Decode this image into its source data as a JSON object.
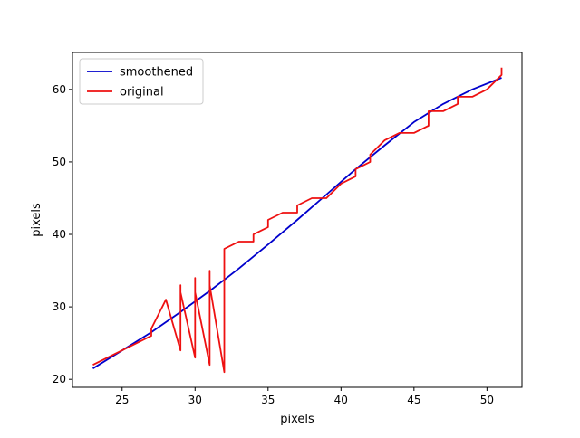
{
  "chart_data": {
    "type": "line",
    "xlabel": "pixels",
    "ylabel": "pixels",
    "xlim": [
      21.6,
      52.4
    ],
    "ylim": [
      18.9,
      65.1
    ],
    "xticks": [
      25,
      30,
      35,
      40,
      45,
      50
    ],
    "yticks": [
      20,
      30,
      40,
      50,
      60
    ],
    "grid": false,
    "legend_position": "top-left",
    "series": [
      {
        "name": "smoothened",
        "color": "#0000cc",
        "x": [
          23,
          25,
          27,
          29,
          31,
          33,
          35,
          37,
          39,
          41,
          43,
          45,
          47,
          49,
          51
        ],
        "y": [
          21.5,
          24.0,
          26.5,
          29.3,
          32.2,
          35.3,
          38.6,
          42.0,
          45.5,
          49.0,
          52.3,
          55.5,
          58.0,
          60.0,
          61.6
        ]
      },
      {
        "name": "original",
        "color": "#ee1111",
        "x": [
          23,
          27,
          27,
          28,
          29,
          29,
          29,
          30,
          30,
          30,
          31,
          31,
          31,
          32,
          32,
          32,
          33,
          34,
          34,
          35,
          35,
          36,
          37,
          37,
          38,
          39,
          40,
          41,
          41,
          42,
          42,
          43,
          44,
          45,
          46,
          46,
          47,
          48,
          48,
          49,
          50,
          51,
          51
        ],
        "y": [
          22,
          26,
          27,
          31,
          24,
          33,
          32,
          23,
          34,
          32,
          22,
          35,
          33,
          21,
          38,
          38,
          39,
          39,
          40,
          41,
          42,
          43,
          43,
          44,
          45,
          45,
          47,
          48,
          49,
          50,
          51,
          53,
          54,
          54,
          55,
          57,
          57,
          58,
          59,
          59,
          60,
          62,
          63
        ]
      }
    ]
  }
}
